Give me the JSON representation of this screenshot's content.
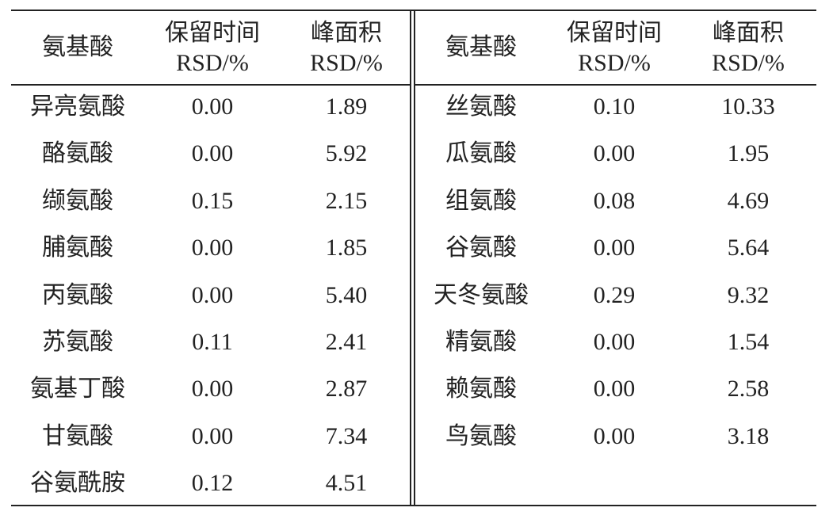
{
  "left": {
    "header": [
      [
        "氨基酸"
      ],
      [
        "保留时间",
        "RSD/%"
      ],
      [
        "峰面积",
        "RSD/%"
      ]
    ],
    "rows": [
      [
        "异亮氨酸",
        "0.00",
        "1.89"
      ],
      [
        "酪氨酸",
        "0.00",
        "5.92"
      ],
      [
        "缬氨酸",
        "0.15",
        "2.15"
      ],
      [
        "脯氨酸",
        "0.00",
        "1.85"
      ],
      [
        "丙氨酸",
        "0.00",
        "5.40"
      ],
      [
        "苏氨酸",
        "0.11",
        "2.41"
      ],
      [
        "氨基丁酸",
        "0.00",
        "2.87"
      ],
      [
        "甘氨酸",
        "0.00",
        "7.34"
      ],
      [
        "谷氨酰胺",
        "0.12",
        "4.51"
      ]
    ]
  },
  "right": {
    "header": [
      [
        "氨基酸"
      ],
      [
        "保留时间",
        "RSD/%"
      ],
      [
        "峰面积",
        "RSD/%"
      ]
    ],
    "rows": [
      [
        "丝氨酸",
        "0.10",
        "10.33"
      ],
      [
        "瓜氨酸",
        "0.00",
        "1.95"
      ],
      [
        "组氨酸",
        "0.08",
        "4.69"
      ],
      [
        "谷氨酸",
        "0.00",
        "5.64"
      ],
      [
        "天冬氨酸",
        "0.29",
        "9.32"
      ],
      [
        "精氨酸",
        "0.00",
        "1.54"
      ],
      [
        "赖氨酸",
        "0.00",
        "2.58"
      ],
      [
        "鸟氨酸",
        "0.00",
        "3.18"
      ]
    ]
  }
}
